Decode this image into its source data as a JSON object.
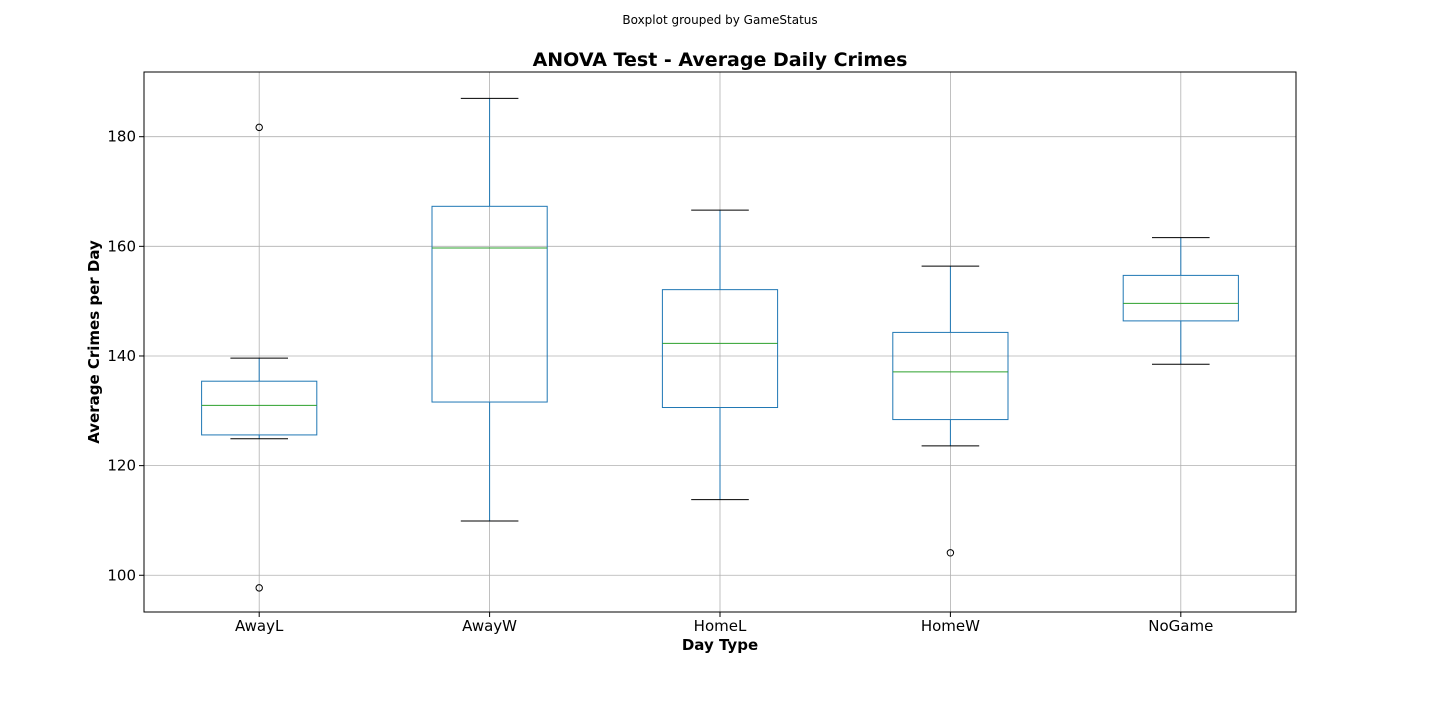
{
  "chart_data": {
    "type": "boxplot",
    "suptitle": "Boxplot grouped by GameStatus",
    "title": "ANOVA Test - Average Daily Crimes",
    "xlabel": "Day Type",
    "ylabel": "Average Crimes per Day",
    "ylim": [
      93.3,
      191.8
    ],
    "yticks": [
      100,
      120,
      140,
      160,
      180
    ],
    "grid": true,
    "categories": [
      "AwayL",
      "AwayW",
      "HomeL",
      "HomeW",
      "NoGame"
    ],
    "boxes": [
      {
        "name": "AwayL",
        "whisker_low": 124.9,
        "q1": 125.6,
        "median": 131.0,
        "q3": 135.4,
        "whisker_high": 139.6,
        "outliers": [
          181.7,
          97.7
        ]
      },
      {
        "name": "AwayW",
        "whisker_low": 109.9,
        "q1": 131.6,
        "median": 159.7,
        "q3": 167.3,
        "whisker_high": 187.0,
        "outliers": []
      },
      {
        "name": "HomeL",
        "whisker_low": 113.8,
        "q1": 130.6,
        "median": 142.3,
        "q3": 152.1,
        "whisker_high": 166.6,
        "outliers": []
      },
      {
        "name": "HomeW",
        "whisker_low": 123.6,
        "q1": 128.4,
        "median": 137.1,
        "q3": 144.3,
        "whisker_high": 156.4,
        "outliers": [
          104.1
        ]
      },
      {
        "name": "NoGame",
        "whisker_low": 138.5,
        "q1": 146.4,
        "median": 149.6,
        "q3": 154.7,
        "whisker_high": 161.6,
        "outliers": []
      }
    ],
    "colors": {
      "box": "#1f77b4",
      "median": "#2ca02c",
      "whisker_cap": "#000000",
      "grid": "#b0b0b0",
      "outlier": "#000000"
    }
  }
}
